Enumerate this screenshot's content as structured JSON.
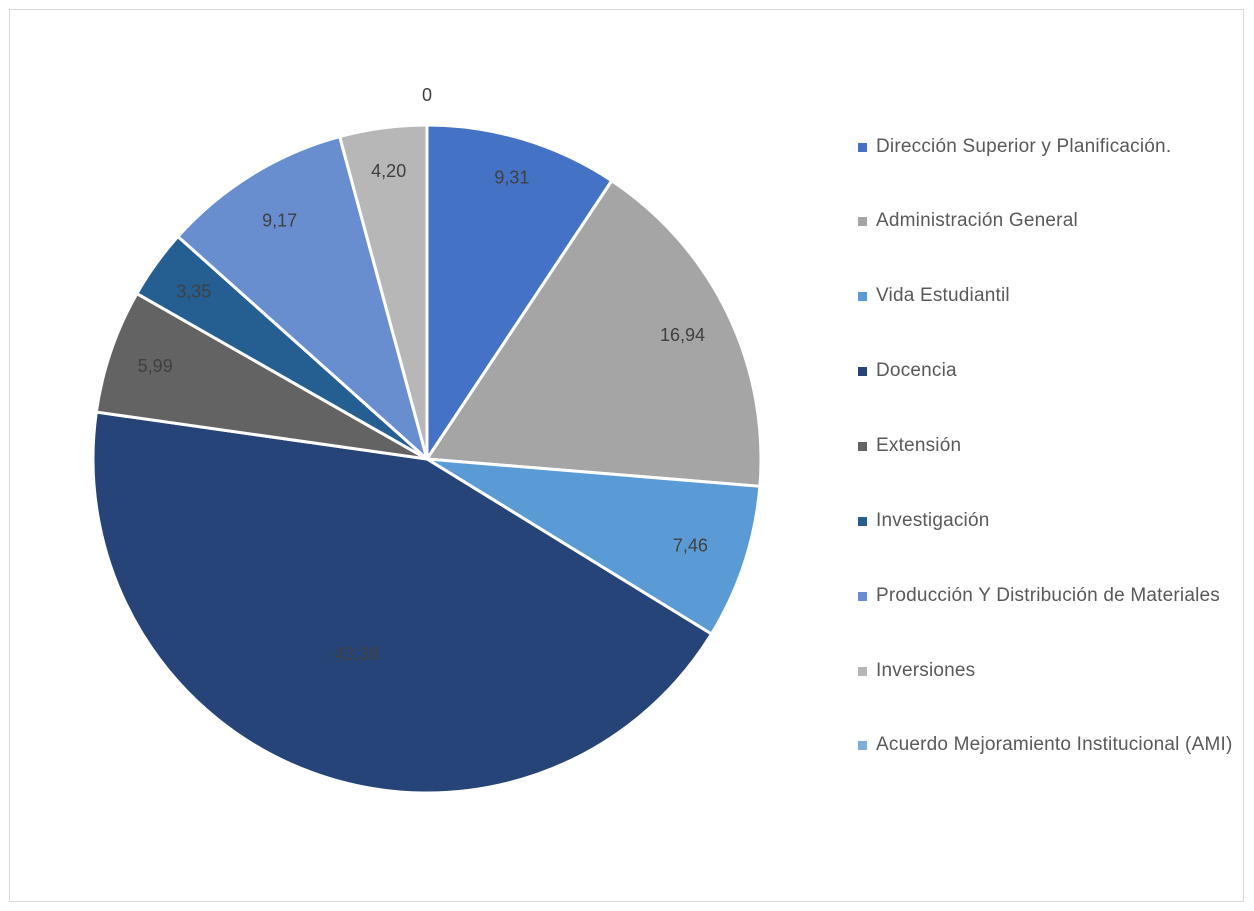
{
  "chart_data": {
    "type": "pie",
    "categories": [
      "Dirección Superior y Planificación.",
      "Administración General",
      "Vida Estudiantil",
      "Docencia",
      "Extensión",
      "Investigación",
      "Producción Y Distribución de Materiales",
      "Inversiones",
      "Acuerdo Mejoramiento Institucional (AMI)"
    ],
    "values": [
      9.31,
      16.94,
      7.46,
      43.38,
      5.99,
      3.35,
      9.17,
      4.2,
      0
    ],
    "value_labels": [
      "9,31",
      "16,94",
      "7,46",
      "43,38",
      "5,99",
      "3,35",
      "9,17",
      "4,20",
      "0"
    ],
    "colors": [
      "#4472c4",
      "#a5a5a5",
      "#5b9bd5",
      "#264478",
      "#636363",
      "#255e91",
      "#698ed0",
      "#b7b7b7",
      "#7cafdd"
    ],
    "legend_position": "right"
  }
}
